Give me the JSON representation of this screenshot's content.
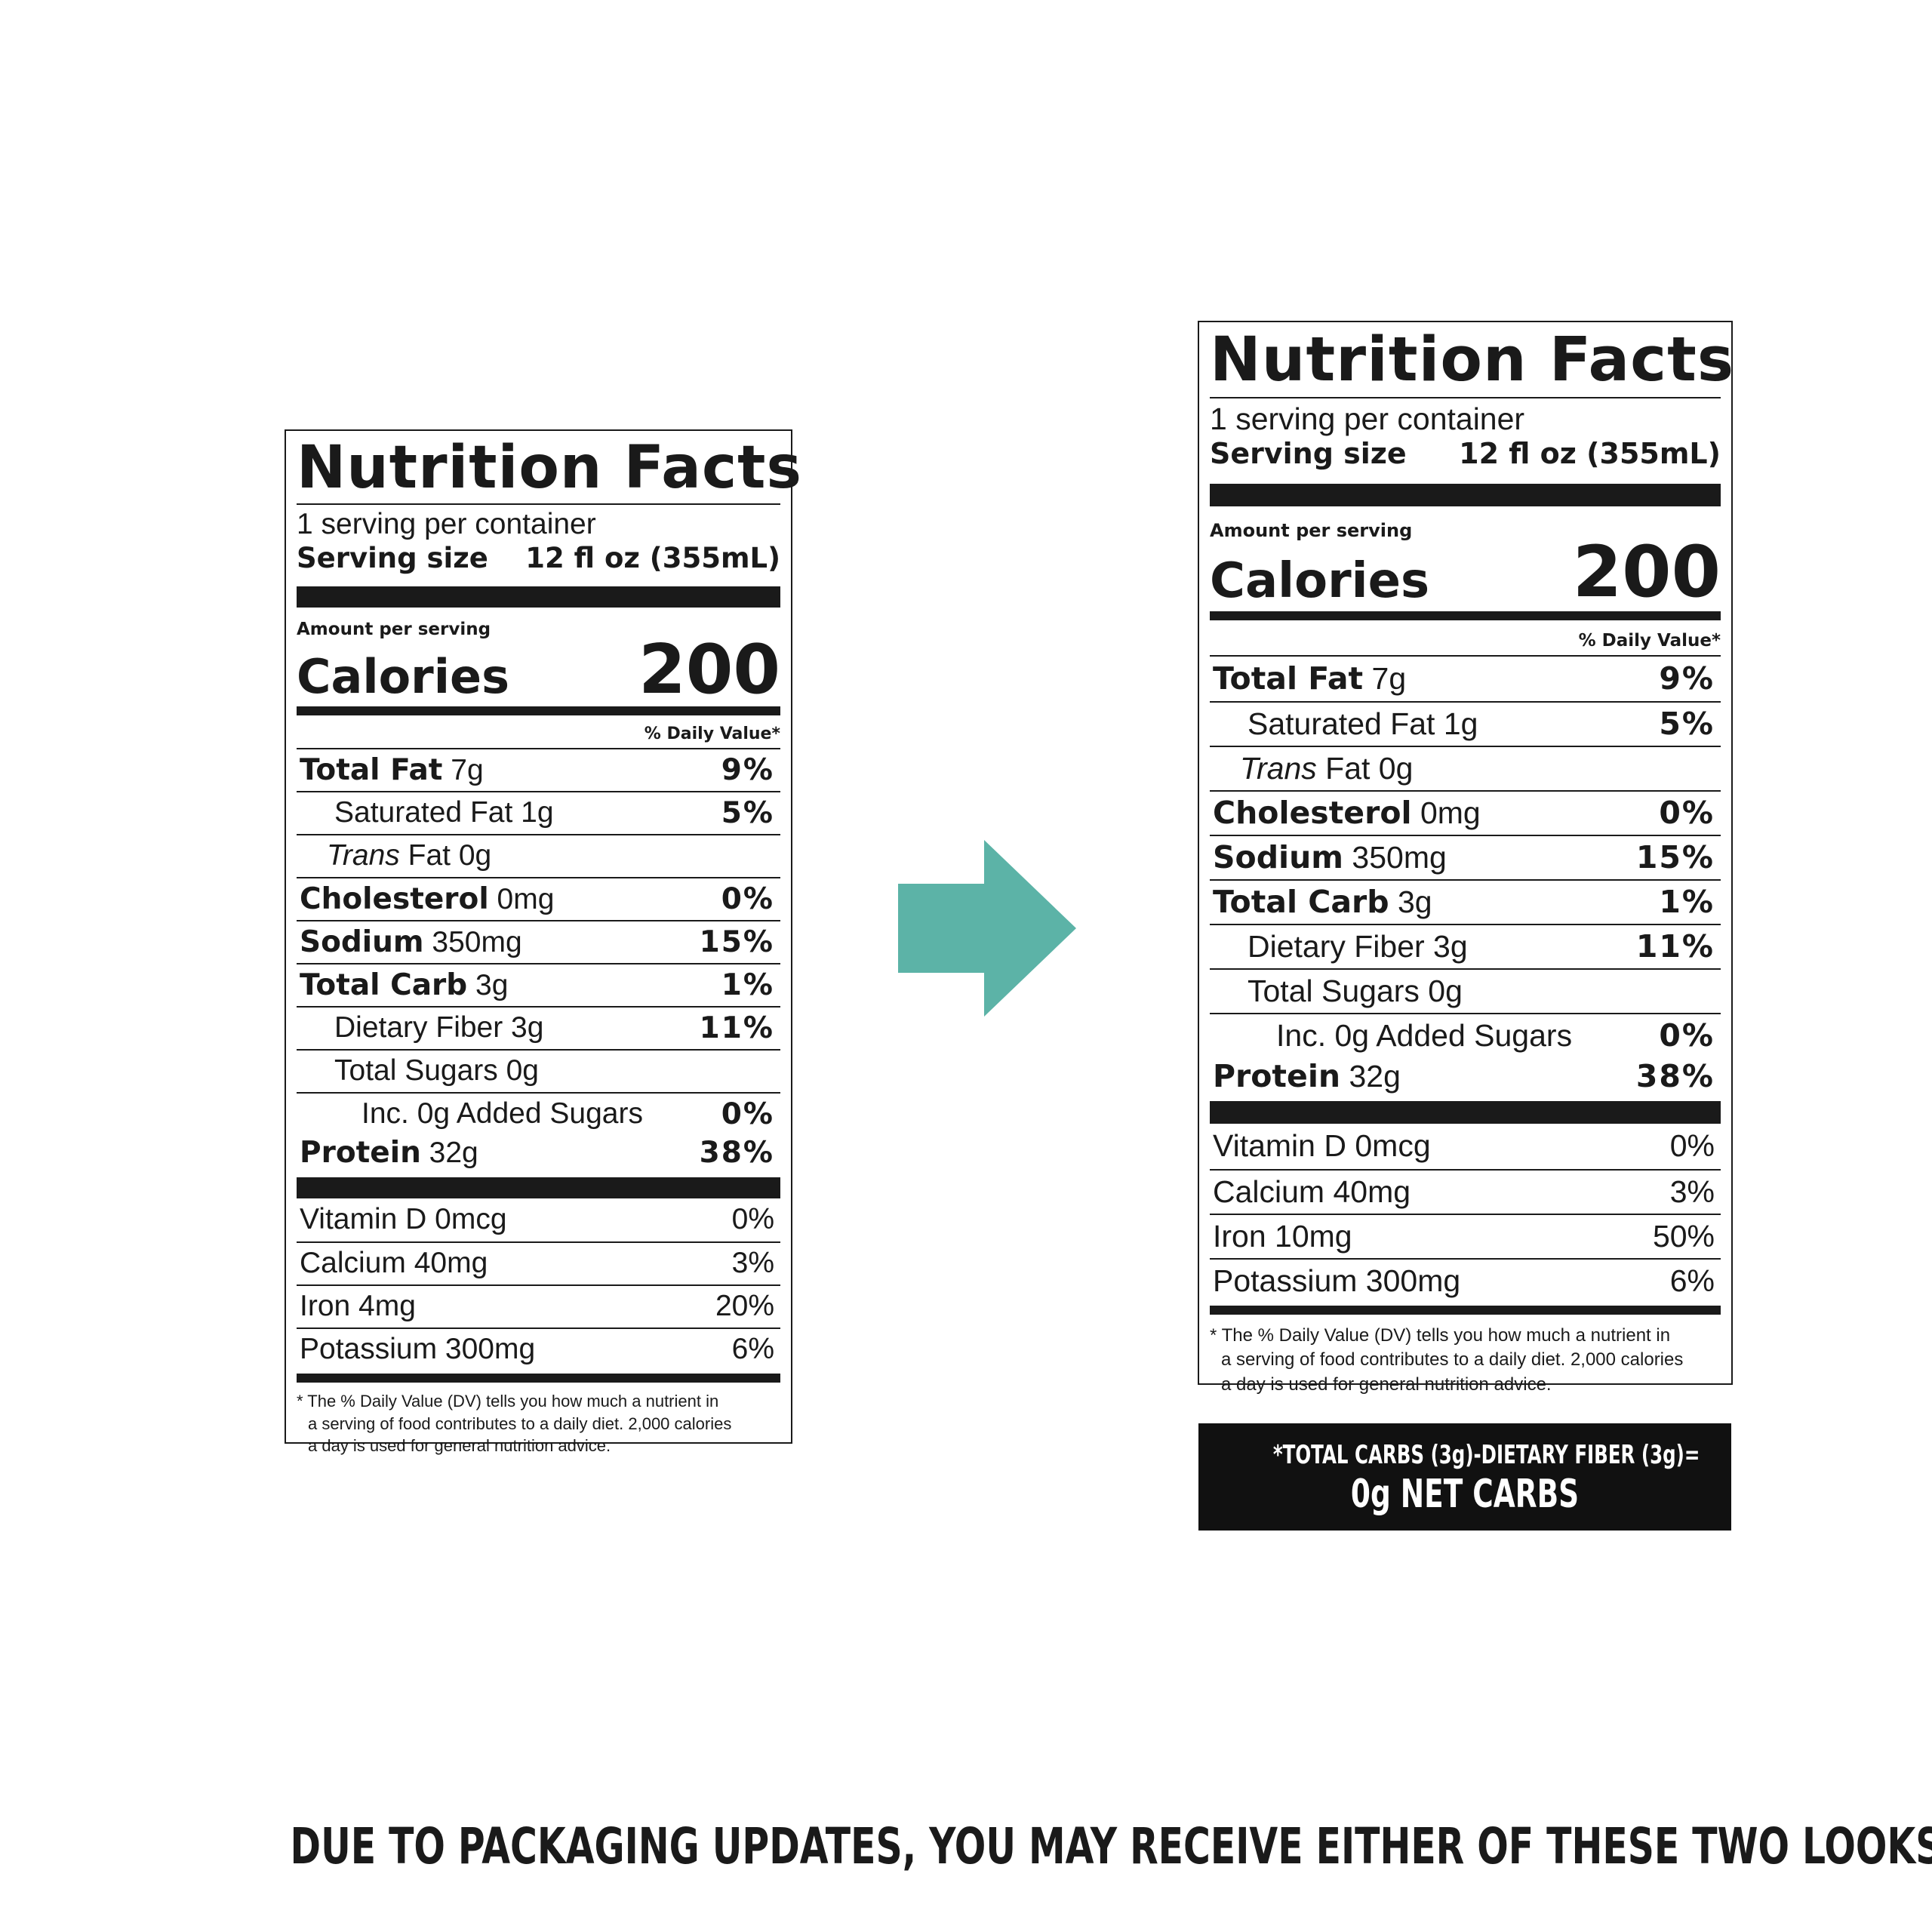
{
  "arrow_color": "#5cb3a7",
  "label_old": {
    "title": "Nutrition Facts",
    "servings_per_container": "1 serving per container",
    "serving_size_label": "Serving size",
    "serving_size_value": "12 fl oz (355mL)",
    "amount_per_serving": "Amount per serving",
    "calories_label": "Calories",
    "calories_value": "200",
    "daily_value_header": "% Daily Value*",
    "nutrients": [
      {
        "bold": "Total Fat",
        "amount": " 7g",
        "dv": "9%"
      },
      {
        "bold": "",
        "amount": "Saturated Fat 1g",
        "dv": "5%"
      },
      {
        "italic": "Trans",
        "amount": " Fat 0g",
        "dv": ""
      },
      {
        "bold": "Cholesterol",
        "amount": " 0mg",
        "dv": "0%"
      },
      {
        "bold": "Sodium",
        "amount": " 350mg",
        "dv": "15%"
      },
      {
        "bold": "Total Carb",
        "amount": " 3g",
        "dv": "1%"
      },
      {
        "bold": "",
        "amount": "Dietary Fiber 3g",
        "dv": "11%"
      },
      {
        "bold": "",
        "amount": "Total Sugars 0g",
        "dv": ""
      },
      {
        "bold": "",
        "amount": "Inc. 0g Added Sugars",
        "dv": "0%"
      },
      {
        "bold": "Protein",
        "amount": " 32g",
        "dv": "38%"
      }
    ],
    "vitamins": [
      {
        "name": "Vitamin D 0mcg",
        "dv": "0%"
      },
      {
        "name": "Calcium 40mg",
        "dv": "3%"
      },
      {
        "name": "Iron 4mg",
        "dv": "20%"
      },
      {
        "name": "Potassium 300mg",
        "dv": "6%"
      }
    ],
    "footnote_1": "* The % Daily Value (DV) tells you how much a nutrient in",
    "footnote_2": "a serving of food contributes to a daily diet. 2,000 calories",
    "footnote_3": "a day is used for general nutrition advice."
  },
  "label_new": {
    "title": "Nutrition Facts",
    "servings_per_container": "1 serving per container",
    "serving_size_label": "Serving size",
    "serving_size_value": "12 fl oz (355mL)",
    "amount_per_serving": "Amount per serving",
    "calories_label": "Calories",
    "calories_value": "200",
    "daily_value_header": "% Daily Value*",
    "nutrients": [
      {
        "bold": "Total Fat",
        "amount": " 7g",
        "dv": "9%"
      },
      {
        "bold": "",
        "amount": "Saturated Fat 1g",
        "dv": "5%"
      },
      {
        "italic": "Trans",
        "amount": " Fat 0g",
        "dv": ""
      },
      {
        "bold": "Cholesterol",
        "amount": " 0mg",
        "dv": "0%"
      },
      {
        "bold": "Sodium",
        "amount": " 350mg",
        "dv": "15%"
      },
      {
        "bold": "Total Carb",
        "amount": " 3g",
        "dv": "1%"
      },
      {
        "bold": "",
        "amount": "Dietary Fiber 3g",
        "dv": "11%"
      },
      {
        "bold": "",
        "amount": "Total Sugars 0g",
        "dv": ""
      },
      {
        "bold": "",
        "amount": "Inc. 0g Added Sugars",
        "dv": "0%"
      },
      {
        "bold": "Protein",
        "amount": " 32g",
        "dv": "38%"
      }
    ],
    "vitamins": [
      {
        "name": "Vitamin D 0mcg",
        "dv": "0%"
      },
      {
        "name": "Calcium 40mg",
        "dv": "3%"
      },
      {
        "name": "Iron 10mg",
        "dv": "50%"
      },
      {
        "name": "Potassium 300mg",
        "dv": "6%"
      }
    ],
    "footnote_1": "* The % Daily Value (DV) tells you how much a nutrient in",
    "footnote_2": "a serving of food contributes to a daily diet. 2,000 calories",
    "footnote_3": "a day is used for general nutrition advice."
  },
  "net_carbs": {
    "line_1": "*TOTAL CARBS (3g)-DIETARY FIBER (3g)=",
    "line_2": "0g NET CARBS"
  },
  "bottom_note": "DUE TO PACKAGING UPDATES, YOU MAY RECEIVE EITHER OF THESE TWO LOOKS"
}
